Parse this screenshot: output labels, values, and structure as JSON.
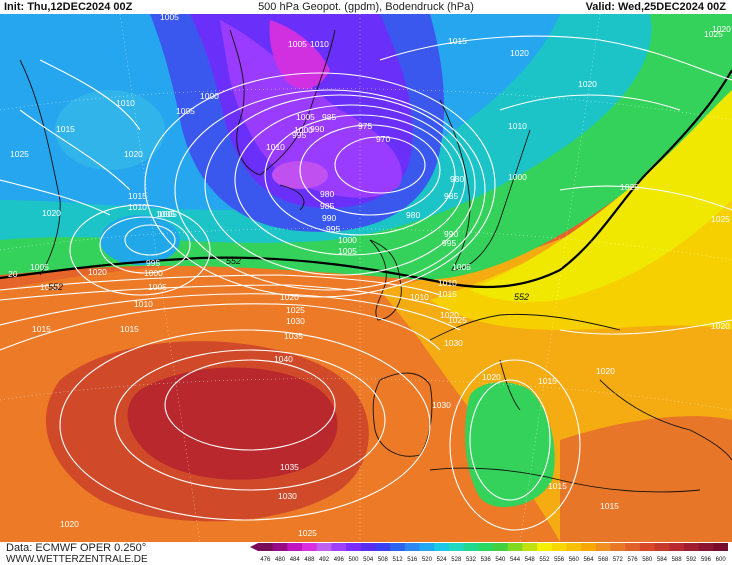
{
  "header": {
    "init": "Init: Thu,12DEC2024 00Z",
    "title": "500 hPa Geopot. (gpdm), Bodendruck (hPa)",
    "valid": "Valid: Wed,25DEC2024 00Z"
  },
  "footer": {
    "data_source": "Data: ECMWF OPER 0.250°",
    "website": "WWW.WETTERZENTRALE.DE"
  },
  "colorbar": {
    "values": [
      "476",
      "480",
      "484",
      "488",
      "492",
      "496",
      "500",
      "504",
      "508",
      "512",
      "516",
      "520",
      "524",
      "528",
      "532",
      "536",
      "540",
      "544",
      "548",
      "552",
      "556",
      "560",
      "564",
      "568",
      "572",
      "576",
      "580",
      "584",
      "588",
      "592",
      "596",
      "600"
    ],
    "colors": [
      "#7a0a5a",
      "#990a86",
      "#c214c0",
      "#d830e0",
      "#c060f0",
      "#a040ff",
      "#7c2cff",
      "#5a2cf0",
      "#3c40f0",
      "#2c64f0",
      "#2c88f0",
      "#20a8f0",
      "#1cc8e8",
      "#20d8c0",
      "#20d890",
      "#28d860",
      "#40d040",
      "#80d820",
      "#c0e010",
      "#f4f000",
      "#f8d800",
      "#f8c000",
      "#f8a800",
      "#f09020",
      "#e87828",
      "#e06028",
      "#d84828",
      "#c83828",
      "#b82830",
      "#a01c30",
      "#8c1430",
      "#780c2c"
    ]
  },
  "isobars": [
    {
      "label": "1005",
      "group": "nw"
    },
    {
      "label": "1010",
      "group": "nw"
    },
    {
      "label": "1015",
      "group": "nw"
    },
    {
      "label": "1020",
      "group": "nw"
    },
    {
      "label": "1005",
      "group": "nw"
    },
    {
      "label": "1000",
      "group": "nw"
    },
    {
      "label": "1005",
      "group": "nw"
    },
    {
      "label": "1020",
      "group": "nw"
    },
    {
      "label": "1015",
      "group": "nw"
    },
    {
      "label": "1010",
      "group": "nw"
    },
    {
      "label": "1005",
      "group": "nw"
    },
    {
      "label": "995",
      "group": "nw"
    },
    {
      "label": "1000",
      "group": "nw"
    },
    {
      "label": "1005",
      "group": "nw"
    },
    {
      "label": "1005",
      "group": "low"
    },
    {
      "label": "1000",
      "group": "low"
    },
    {
      "label": "995",
      "group": "low"
    },
    {
      "label": "990",
      "group": "low"
    },
    {
      "label": "985",
      "group": "low"
    },
    {
      "label": "975",
      "group": "low"
    },
    {
      "label": "970",
      "group": "low"
    },
    {
      "label": "980",
      "group": "low"
    },
    {
      "label": "980",
      "group": "low"
    },
    {
      "label": "985",
      "group": "low"
    },
    {
      "label": "990",
      "group": "low"
    },
    {
      "label": "995",
      "group": "low"
    },
    {
      "label": "1000",
      "group": "low"
    },
    {
      "label": "1005",
      "group": "low"
    },
    {
      "label": "1010",
      "group": "low"
    },
    {
      "label": "980",
      "group": "low"
    },
    {
      "label": "985",
      "group": "low"
    },
    {
      "label": "990",
      "group": "low"
    },
    {
      "label": "995",
      "group": "low"
    },
    {
      "label": "1005",
      "group": "low"
    },
    {
      "label": "1010",
      "group": "low"
    },
    {
      "label": "1005",
      "group": "top"
    },
    {
      "label": "1010",
      "group": "top"
    },
    {
      "label": "1015",
      "group": "top"
    },
    {
      "label": "1020",
      "group": "top"
    },
    {
      "label": "1020",
      "group": "top"
    },
    {
      "label": "1025",
      "group": "top"
    },
    {
      "label": "1010",
      "group": "top"
    },
    {
      "label": "1000",
      "group": "top"
    },
    {
      "label": "1025",
      "group": "east"
    },
    {
      "label": "1025",
      "group": "east"
    },
    {
      "label": "1020",
      "group": "east"
    },
    {
      "label": "1020",
      "group": "east"
    },
    {
      "label": "1015",
      "group": "east"
    },
    {
      "label": "1015",
      "group": "east"
    },
    {
      "label": "1020",
      "group": "east"
    },
    {
      "label": "1025",
      "group": "east"
    },
    {
      "label": "1030",
      "group": "east"
    },
    {
      "label": "1010",
      "group": "mid"
    },
    {
      "label": "1015",
      "group": "mid"
    },
    {
      "label": "1020",
      "group": "mid"
    },
    {
      "label": "1025",
      "group": "mid"
    },
    {
      "label": "1030",
      "group": "mid"
    },
    {
      "label": "1035",
      "group": "mid"
    },
    {
      "label": "1040",
      "group": "high"
    },
    {
      "label": "1035",
      "group": "high"
    },
    {
      "label": "1030",
      "group": "high"
    },
    {
      "label": "1025",
      "group": "high"
    },
    {
      "label": "1020",
      "group": "high"
    },
    {
      "label": "1015",
      "group": "high"
    },
    {
      "label": "1010",
      "group": "high"
    },
    {
      "label": "1005",
      "group": "high"
    },
    {
      "label": "1030",
      "group": "high"
    },
    {
      "label": "1020",
      "group": "sw"
    },
    {
      "label": "1015",
      "group": "sw"
    },
    {
      "label": "1010",
      "group": "mid"
    },
    {
      "label": "1015",
      "group": "mid"
    },
    {
      "label": "1020",
      "group": "mid"
    },
    {
      "label": "1020",
      "group": "edge"
    },
    {
      "label": "1025",
      "group": "edge"
    },
    {
      "label": "20",
      "group": "edge"
    },
    {
      "label": "5",
      "group": "edge"
    }
  ],
  "geopot_labels": [
    {
      "label": "552"
    },
    {
      "label": "552"
    },
    {
      "label": "552"
    }
  ]
}
